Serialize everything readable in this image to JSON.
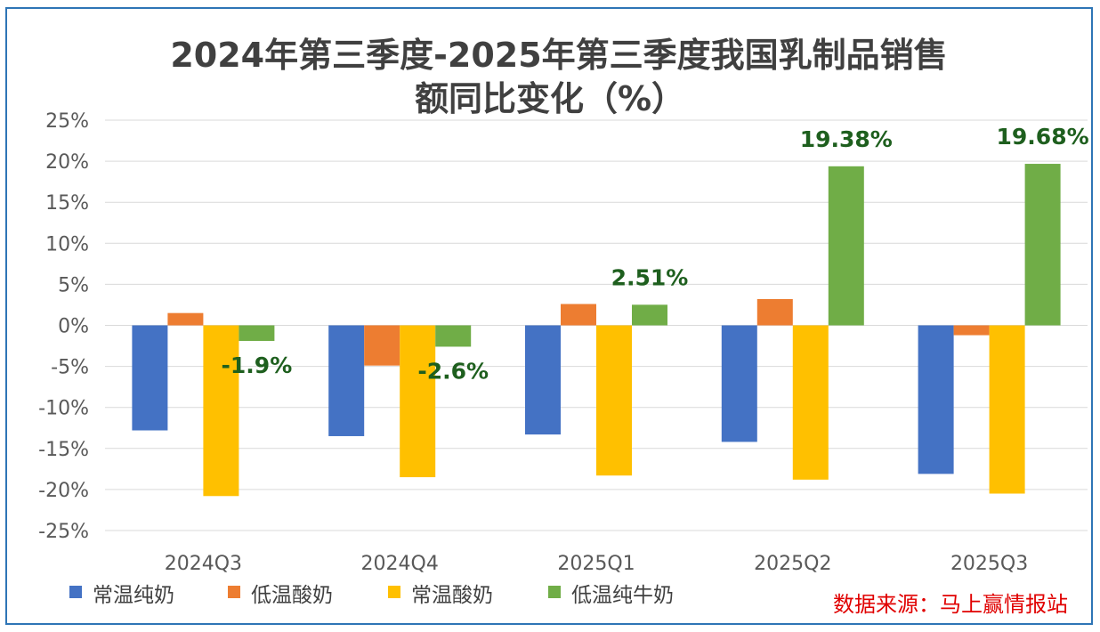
{
  "chart_data": {
    "type": "bar",
    "title_line1": "2024年第三季度-2025年第三季度我国乳制品销售",
    "title_line2": "额同比变化（%）",
    "categories": [
      "2024Q3",
      "2024Q4",
      "2025Q1",
      "2025Q2",
      "2025Q3"
    ],
    "yticks": [
      "25%",
      "20%",
      "15%",
      "10%",
      "5%",
      "0%",
      "-5%",
      "-10%",
      "-15%",
      "-20%",
      "-25%"
    ],
    "ylim": [
      -25,
      25
    ],
    "grid": true,
    "legend_position": "bottom-left",
    "series": [
      {
        "name": "常温纯奶",
        "color": "#4472c4",
        "values": [
          -12.8,
          -13.5,
          -13.3,
          -14.2,
          -18.1
        ]
      },
      {
        "name": "低温酸奶",
        "color": "#ed7d31",
        "values": [
          1.5,
          -4.9,
          2.6,
          3.2,
          -1.2
        ]
      },
      {
        "name": "常温酸奶",
        "color": "#ffc000",
        "values": [
          -20.8,
          -18.5,
          -18.3,
          -18.8,
          -20.5
        ]
      },
      {
        "name": "低温纯牛奶",
        "color": "#70ad47",
        "values": [
          -1.9,
          -2.6,
          2.51,
          19.38,
          19.68
        ]
      }
    ],
    "data_labels": [
      "-1.9%",
      "-2.6%",
      "2.51%",
      "19.38%",
      "19.68%"
    ],
    "source": "数据来源：马上赢情报站"
  }
}
